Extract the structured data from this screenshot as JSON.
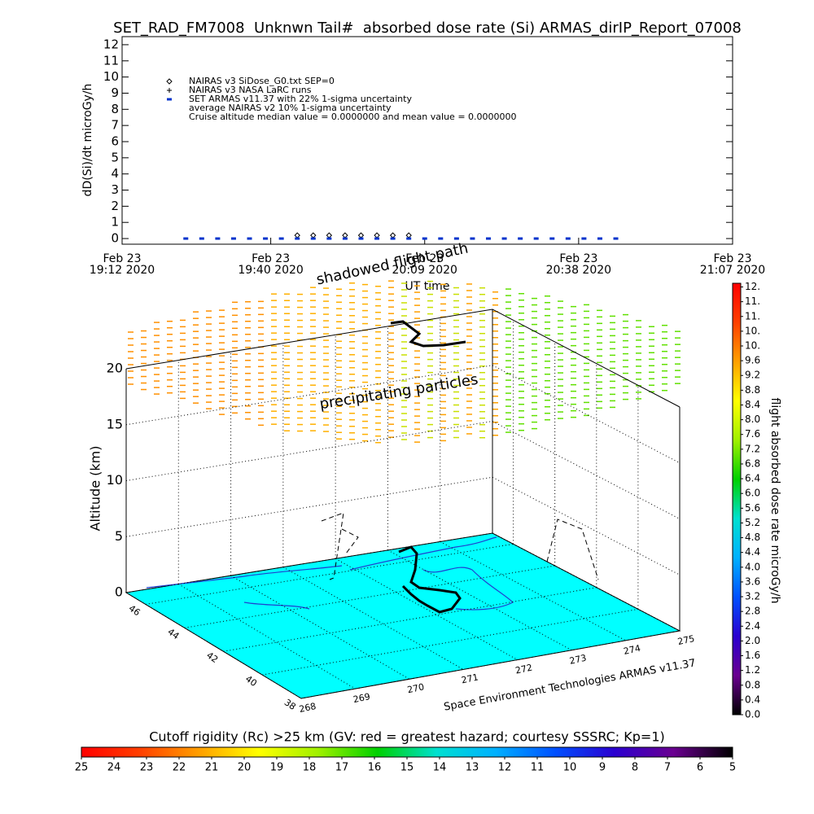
{
  "chart_data": [
    {
      "type": "timeseries",
      "title": "SET_RAD_FM7008  Unknwn Tail#  absorbed dose rate (Si) ARMAS_dirIP_Report_07008",
      "ylabel": "dD(Si)/dt microGy/h",
      "xlabel": "UT time",
      "ylim": [
        -0.35,
        12.5
      ],
      "yticks": [
        0,
        1,
        2,
        3,
        4,
        5,
        6,
        7,
        8,
        9,
        10,
        11,
        12
      ],
      "xlim": [
        "2020-02-23T19:12",
        "2020-02-23T21:07"
      ],
      "xticks": [
        {
          "value": "2020-02-23T19:12",
          "label": [
            "Feb 23",
            "19:12 2020"
          ]
        },
        {
          "value": "2020-02-23T19:40",
          "label": [
            "Feb 23",
            "19:40 2020"
          ]
        },
        {
          "value": "2020-02-23T20:09",
          "label": [
            "Feb 23",
            "20:09 2020"
          ]
        },
        {
          "value": "2020-02-23T20:38",
          "label": [
            "Feb 23",
            "20:38 2020"
          ]
        },
        {
          "value": "2020-02-23T21:07",
          "label": [
            "Feb 23",
            "21:07 2020"
          ]
        }
      ],
      "series": [
        {
          "name": "NAIRAS v3 SiDose_G0.txt SEP=0",
          "marker": "diamond",
          "color": "#000000",
          "x": [
            "2020-02-23T19:45",
            "2020-02-23T19:48",
            "2020-02-23T19:51",
            "2020-02-23T19:54",
            "2020-02-23T19:57",
            "2020-02-23T20:00",
            "2020-02-23T20:03",
            "2020-02-23T20:06"
          ],
          "values": [
            0.2,
            0.2,
            0.2,
            0.2,
            0.2,
            0.2,
            0.2,
            0.2
          ]
        },
        {
          "name": "NAIRAS v3 NASA LaRC runs",
          "marker": "plus",
          "color": "#000000",
          "x": [],
          "values": []
        },
        {
          "name": "SET ARMAS v11.37 with 22% 1-sigma uncertainty",
          "marker": "dot",
          "color": "#0033cc",
          "x": [
            "2020-02-23T19:24",
            "2020-02-23T19:27",
            "2020-02-23T19:30",
            "2020-02-23T19:33",
            "2020-02-23T19:36",
            "2020-02-23T19:39",
            "2020-02-23T19:42",
            "2020-02-23T19:45",
            "2020-02-23T19:48",
            "2020-02-23T19:51",
            "2020-02-23T19:54",
            "2020-02-23T19:57",
            "2020-02-23T20:00",
            "2020-02-23T20:03",
            "2020-02-23T20:06",
            "2020-02-23T20:09",
            "2020-02-23T20:12",
            "2020-02-23T20:15",
            "2020-02-23T20:18",
            "2020-02-23T20:21",
            "2020-02-23T20:24",
            "2020-02-23T20:27",
            "2020-02-23T20:30",
            "2020-02-23T20:33",
            "2020-02-23T20:36",
            "2020-02-23T20:39",
            "2020-02-23T20:42",
            "2020-02-23T20:45"
          ],
          "values": [
            0,
            0,
            0,
            0,
            0,
            0,
            0,
            0,
            0,
            0,
            0,
            0,
            0,
            0,
            0,
            0,
            0,
            0,
            0,
            0,
            0,
            0,
            0,
            0,
            0,
            0,
            0,
            0
          ]
        }
      ],
      "annotations": [
        "average NAIRAS v2 10% 1-sigma uncertainty",
        "Cruise altitude median value = 0.0000000 and mean value = 0.0000000"
      ]
    },
    {
      "type": "flight3d",
      "zlabel": "Altitude (km)",
      "zlim": [
        0,
        20
      ],
      "zticks": [
        0,
        5,
        10,
        15,
        20
      ],
      "lonlim": [
        268,
        275
      ],
      "lonticks": [
        268,
        269,
        270,
        271,
        272,
        273,
        274,
        275
      ],
      "latlim": [
        47,
        38
      ],
      "latticks": [
        46,
        44,
        42,
        40,
        38
      ],
      "annotations": [
        "shadowed flight path",
        "precipitating particles"
      ],
      "credit": "Space Environment Technologies ARMAS v11.37",
      "surface_color": "#00ffff"
    },
    {
      "type": "colorbar",
      "orientation": "vertical",
      "title": "flight absorbed dose rate microGy/h",
      "lim": [
        0,
        11.7
      ],
      "ticks": [
        {
          "value": 0,
          "label": "0.0"
        },
        0.4,
        0.8,
        {
          "value": 1.2,
          "label": "1.2"
        },
        1.6,
        {
          "value": 2,
          "label": "2.0"
        },
        2.4,
        2.8,
        3.2,
        3.6,
        {
          "value": 4,
          "label": "4.0"
        },
        4.4,
        4.8,
        5.2,
        5.6,
        {
          "value": 6,
          "label": "6.0"
        },
        6.4,
        6.8,
        7.2,
        7.6,
        {
          "value": 8,
          "label": "8.0"
        },
        8.4,
        8.8,
        9.2,
        9.6,
        {
          "value": 10,
          "label": "10."
        },
        {
          "value": 10.4,
          "label": "10."
        },
        {
          "value": 10.8,
          "label": "11."
        },
        {
          "value": 11.2,
          "label": "11."
        },
        {
          "value": 11.6,
          "label": "12."
        }
      ],
      "colormap": [
        "#000000",
        "#6a0090",
        "#2a00d0",
        "#0050ff",
        "#00b0ff",
        "#00e0d0",
        "#00d000",
        "#a0f000",
        "#ffff00",
        "#ffa000",
        "#ff4000",
        "#ff0000"
      ]
    },
    {
      "type": "colorbar",
      "orientation": "horizontal",
      "title": "Cutoff rigidity (Rc) >25 km (GV: red = greatest hazard; courtesy SSSRC; Kp=1)",
      "lim": [
        25,
        5
      ],
      "ticks": [
        25,
        24,
        23,
        22,
        21,
        20,
        19,
        18,
        17,
        16,
        15,
        14,
        13,
        12,
        11,
        10,
        9,
        8,
        7,
        6,
        5
      ],
      "colormap": [
        "#000000",
        "#6a0090",
        "#2a00d0",
        "#0050ff",
        "#00b0ff",
        "#00e0d0",
        "#00d000",
        "#a0f000",
        "#ffff00",
        "#ffa000",
        "#ff4000",
        "#ff0000"
      ]
    }
  ]
}
